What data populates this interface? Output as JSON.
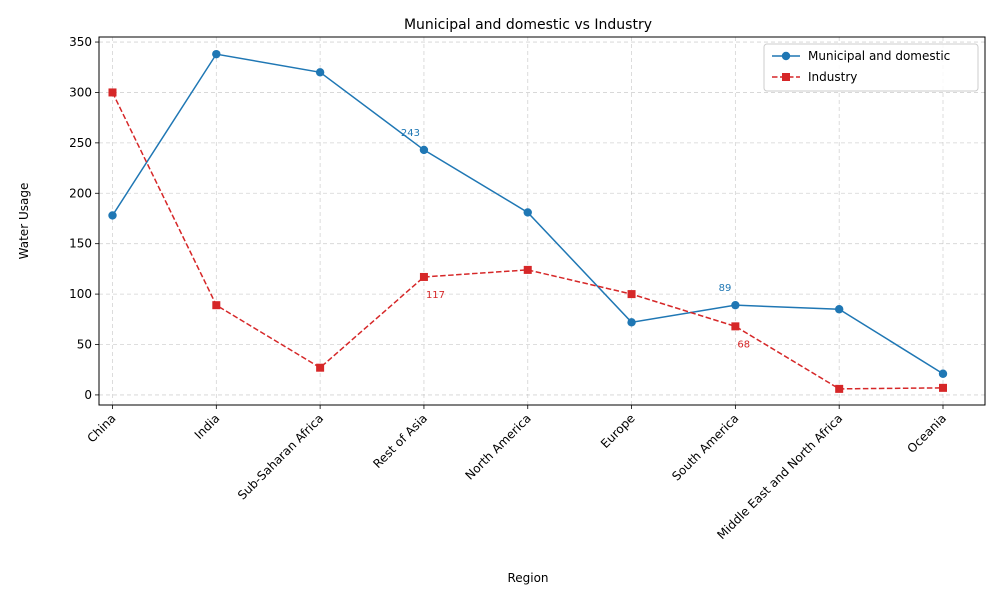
{
  "chart_data": {
    "type": "line",
    "title": "Municipal and domestic vs Industry",
    "xlabel": "Region",
    "ylabel": "Water Usage",
    "categories": [
      "China",
      "India",
      "Sub-Saharan Africa",
      "Rest of Asia",
      "North America",
      "Europe",
      "South America",
      "Middle East and North Africa",
      "Oceania"
    ],
    "ylim": [
      -10,
      355
    ],
    "yticks": [
      0,
      50,
      100,
      150,
      200,
      250,
      300,
      350
    ],
    "grid": true,
    "legend_position": "top-right",
    "series": [
      {
        "name": "Municipal and domestic",
        "color": "#1f77b4",
        "marker": "circle",
        "linestyle": "solid",
        "values": [
          178,
          338,
          320,
          243,
          181,
          72,
          89,
          85,
          21
        ],
        "annotations": [
          {
            "category_index": 3,
            "text": "243"
          },
          {
            "category_index": 6,
            "text": "89"
          }
        ]
      },
      {
        "name": "Industry",
        "color": "#d62728",
        "marker": "square",
        "linestyle": "dashed",
        "values": [
          300,
          89,
          27,
          117,
          124,
          100,
          68,
          6,
          7
        ],
        "annotations": [
          {
            "category_index": 3,
            "text": "117"
          },
          {
            "category_index": 6,
            "text": "68"
          }
        ]
      }
    ]
  }
}
